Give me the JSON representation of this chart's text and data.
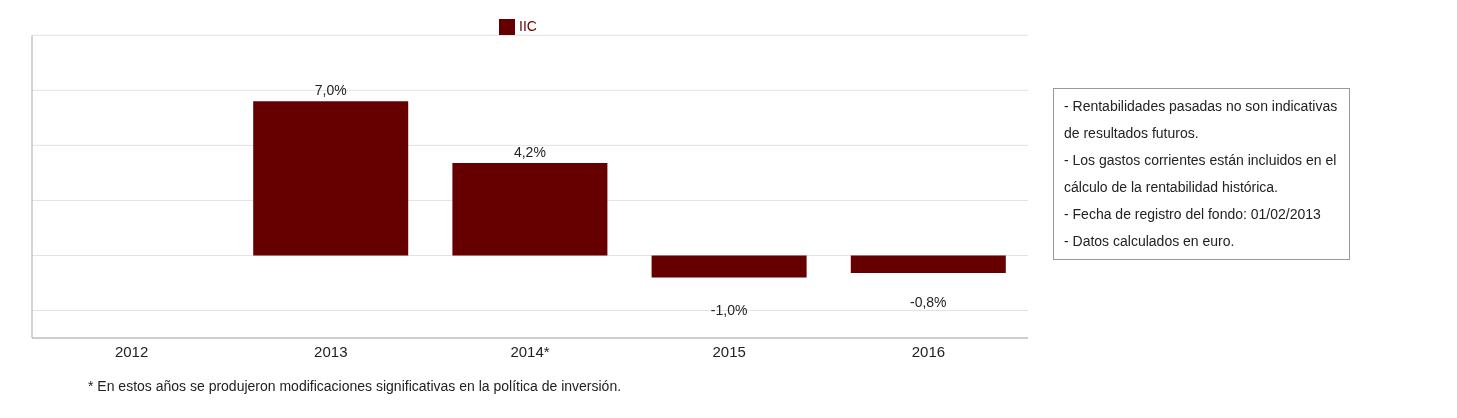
{
  "chart_data": {
    "type": "bar",
    "categories": [
      "2012",
      "2013",
      "2014*",
      "2015",
      "2016"
    ],
    "series": [
      {
        "name": "IIC",
        "color": "#660000",
        "values": [
          null,
          7.0,
          4.2,
          -1.0,
          -0.8
        ],
        "value_labels": [
          null,
          "7,0%",
          "4,2%",
          "-1,0%",
          "-0,8%"
        ]
      }
    ],
    "tick_labels": "x",
    "grid": "y",
    "legend": "top",
    "annotations": [
      "- Rentabilidades pasadas no son indicativas de resultados futuros.",
      "- Los gastos corrientes están incluidos en el cálculo de la rentabilidad histórica.",
      "- Fecha de registro del fondo: 01/02/2013",
      "- Datos calculados en euro.",
      "* En estos años se produjeron modificaciones significativas en la política de inversión."
    ]
  }
}
